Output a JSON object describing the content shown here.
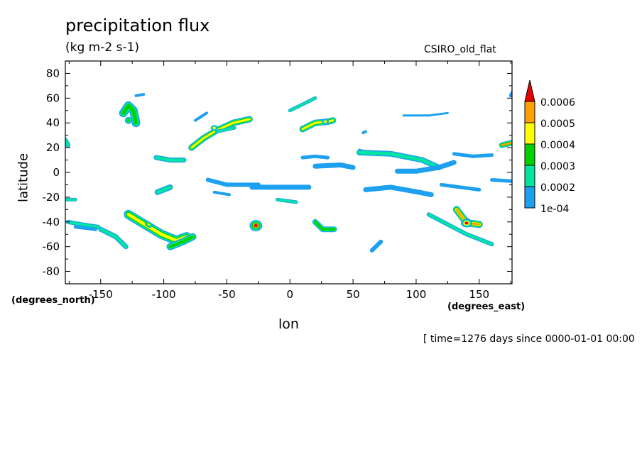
{
  "chart_data": {
    "type": "heatmap",
    "title": "precipitation flux",
    "subtitle": "(kg m-2 s-1)",
    "model_label": "CSIRO_old_flat",
    "xlabel": "lon",
    "ylabel": "latitude",
    "xunits": "(degrees_east)",
    "yunits": "(degrees_north)",
    "timestamp": "[ time=1276 days since 0000-01-01 00:00",
    "xlim": [
      -178,
      176
    ],
    "ylim": [
      -90,
      90
    ],
    "x_ticks": [
      -150,
      -100,
      -50,
      0,
      50,
      100,
      150
    ],
    "x_tick_labels": [
      "-150",
      "-100",
      "-50",
      "0",
      "50",
      "100",
      "150"
    ],
    "y_ticks": [
      -80,
      -60,
      -40,
      -20,
      0,
      20,
      40,
      60,
      80
    ],
    "y_tick_labels": [
      "-80",
      "-60",
      "-40",
      "-20",
      "0",
      "20",
      "40",
      "60",
      "80"
    ],
    "colorbar": {
      "levels": [
        0.0001,
        0.0002,
        0.0003,
        0.0004,
        0.0005,
        0.0006
      ],
      "labels": [
        "1e-04",
        "0.0002",
        "0.0003",
        "0.0004",
        "0.0005",
        "0.0006"
      ],
      "colors": [
        "#1ea0f0",
        "#00e6a0",
        "#00d200",
        "#ffff00",
        "#ffa000",
        "#e60000"
      ]
    },
    "features": [
      {
        "lon": -128,
        "lat": 47,
        "value": 0.00045
      },
      {
        "lon": -90,
        "lat": 11,
        "value": 0.00022
      },
      {
        "lon": -62,
        "lat": 32,
        "value": 0.00045
      },
      {
        "lon": -27,
        "lat": -43,
        "value": 0.00062
      },
      {
        "lon": 26,
        "lat": 41,
        "value": 0.00045
      },
      {
        "lon": 140,
        "lat": -41,
        "value": 0.00058
      },
      {
        "lon": 175,
        "lat": 23,
        "value": 0.00058
      },
      {
        "lon": -113,
        "lat": -44,
        "value": 0.0005
      },
      {
        "lon": -82,
        "lat": -54,
        "value": 0.0004
      },
      {
        "lon": 115,
        "lat": 2,
        "value": 0.00018
      },
      {
        "lon": 115,
        "lat": -46,
        "value": 0.00022
      },
      {
        "lon": 30,
        "lat": -44,
        "value": 0.0003
      }
    ]
  }
}
